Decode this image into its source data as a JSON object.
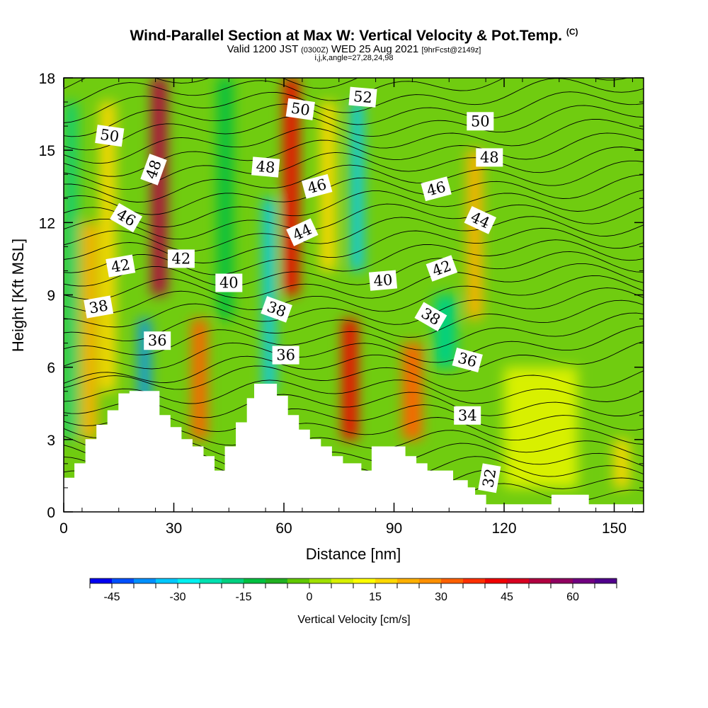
{
  "chart_data": {
    "type": "heatmap",
    "title": "Wind-Parallel Section at Max W: Vertical Velocity & Pot.Temp.",
    "title_mark": "(C)",
    "subtitle_main": "Valid 1200 JST",
    "subtitle_utc": "(0300Z)",
    "subtitle_date": "WED 25 Aug 2021",
    "subtitle_fcst": "[9hrFcst@2149z]",
    "subtitle2": "i,j,k,angle=27,28,24,98",
    "xlabel": "Distance [nm]",
    "ylabel": "Height [Kft MSL]",
    "xlim": [
      0,
      158
    ],
    "ylim": [
      0,
      18
    ],
    "xticks": [
      "0",
      "30",
      "60",
      "90",
      "120",
      "150"
    ],
    "yticks": [
      "0",
      "3",
      "6",
      "9",
      "12",
      "15",
      "18"
    ],
    "colorbar": {
      "title": "Vertical Velocity [cm/s]",
      "min": -50,
      "max": 70,
      "step": 5,
      "labels": [
        "-45",
        "-30",
        "-15",
        "0",
        "15",
        "30",
        "45",
        "60"
      ],
      "colors": [
        "#0000f0",
        "#0050ff",
        "#0090ff",
        "#00c8ff",
        "#00f0f0",
        "#00e0b0",
        "#00d080",
        "#00c040",
        "#20b020",
        "#60c800",
        "#a0e000",
        "#d8f000",
        "#ffff00",
        "#ffd800",
        "#ffb000",
        "#ff9000",
        "#ff6000",
        "#ff3000",
        "#f00000",
        "#d80020",
        "#b00040",
        "#900060",
        "#700080",
        "#50008c"
      ]
    },
    "series": [
      {
        "name": "Vertical Velocity",
        "units": "cm/s",
        "bands": [
          {
            "x": 2,
            "w": 3,
            "ymin": 3,
            "ymax": 17,
            "value": -20
          },
          {
            "x": 7,
            "w": 4,
            "ymin": 3,
            "ymax": 12,
            "value": 20
          },
          {
            "x": 12,
            "w": 4,
            "ymin": 5,
            "ymax": 17,
            "value": 15
          },
          {
            "x": 22,
            "w": 3,
            "ymin": 4,
            "ymax": 8,
            "value": -40
          },
          {
            "x": 26,
            "w": 4,
            "ymin": 9,
            "ymax": 18,
            "value": 50
          },
          {
            "x": 37,
            "w": 4,
            "ymin": 3,
            "ymax": 8,
            "value": 30
          },
          {
            "x": 44,
            "w": 4,
            "ymin": 8,
            "ymax": 18,
            "value": -15
          },
          {
            "x": 56,
            "w": 3,
            "ymin": 5,
            "ymax": 13,
            "value": -35
          },
          {
            "x": 62,
            "w": 4,
            "ymin": 9,
            "ymax": 18,
            "value": 40
          },
          {
            "x": 72,
            "w": 4,
            "ymin": 10,
            "ymax": 17,
            "value": 15
          },
          {
            "x": 78,
            "w": 4,
            "ymin": 3,
            "ymax": 8,
            "value": 40
          },
          {
            "x": 80,
            "w": 3,
            "ymin": 10,
            "ymax": 17,
            "value": -35
          },
          {
            "x": 95,
            "w": 5,
            "ymin": 3,
            "ymax": 7,
            "value": 30
          },
          {
            "x": 104,
            "w": 6,
            "ymin": 6,
            "ymax": 9,
            "value": -20
          },
          {
            "x": 112,
            "w": 4,
            "ymin": 8,
            "ymax": 15,
            "value": 20
          },
          {
            "x": 130,
            "w": 20,
            "ymin": 1,
            "ymax": 6,
            "value": 5
          },
          {
            "x": 152,
            "w": 4,
            "ymin": 1,
            "ymax": 3,
            "value": 15
          }
        ]
      },
      {
        "name": "Pot.Temp.",
        "units": "C",
        "contour_labels": [
          {
            "value": "50",
            "x": 12.5,
            "y": 15.6,
            "angle": 8
          },
          {
            "value": "48",
            "x": 24.5,
            "y": 14.2,
            "angle": -70
          },
          {
            "value": "46",
            "x": 17,
            "y": 12.2,
            "angle": 30
          },
          {
            "value": "42",
            "x": 15.5,
            "y": 10.2,
            "angle": -10
          },
          {
            "value": "38",
            "x": 9.5,
            "y": 8.5,
            "angle": -10
          },
          {
            "value": "42",
            "x": 32,
            "y": 10.5,
            "angle": 0
          },
          {
            "value": "40",
            "x": 45,
            "y": 9.5,
            "angle": 0
          },
          {
            "value": "36",
            "x": 25.5,
            "y": 7.1,
            "angle": 0
          },
          {
            "value": "48",
            "x": 55,
            "y": 14.3,
            "angle": 5
          },
          {
            "value": "50",
            "x": 64.5,
            "y": 16.7,
            "angle": 8
          },
          {
            "value": "52",
            "x": 81.5,
            "y": 17.2,
            "angle": 5
          },
          {
            "value": "46",
            "x": 69,
            "y": 13.5,
            "angle": -15
          },
          {
            "value": "44",
            "x": 65,
            "y": 11.6,
            "angle": -25
          },
          {
            "value": "38",
            "x": 58,
            "y": 8.4,
            "angle": 20
          },
          {
            "value": "36",
            "x": 60.5,
            "y": 6.5,
            "angle": 0
          },
          {
            "value": "40",
            "x": 87,
            "y": 9.6,
            "angle": -5
          },
          {
            "value": "42",
            "x": 103,
            "y": 10.1,
            "angle": -20
          },
          {
            "value": "46",
            "x": 101.5,
            "y": 13.4,
            "angle": -15
          },
          {
            "value": "50",
            "x": 113.5,
            "y": 16.2,
            "angle": 0
          },
          {
            "value": "48",
            "x": 116,
            "y": 14.7,
            "angle": 0
          },
          {
            "value": "44",
            "x": 113.5,
            "y": 12.1,
            "angle": 25
          },
          {
            "value": "38",
            "x": 100,
            "y": 8.1,
            "angle": 30
          },
          {
            "value": "36",
            "x": 110,
            "y": 6.3,
            "angle": 15
          },
          {
            "value": "34",
            "x": 110,
            "y": 4.0,
            "angle": 0
          },
          {
            "value": "32",
            "x": 116,
            "y": 1.4,
            "angle": -80
          }
        ]
      }
    ],
    "terrain": [
      [
        0,
        1.4
      ],
      [
        3,
        1.4
      ],
      [
        3,
        2
      ],
      [
        6,
        2
      ],
      [
        6,
        3
      ],
      [
        9,
        3
      ],
      [
        9,
        3.6
      ],
      [
        12,
        3.6
      ],
      [
        12,
        4.2
      ],
      [
        15,
        4.2
      ],
      [
        15,
        4.9
      ],
      [
        18,
        4.9
      ],
      [
        18,
        5
      ],
      [
        26,
        5
      ],
      [
        26,
        4
      ],
      [
        29,
        4
      ],
      [
        29,
        3.5
      ],
      [
        32,
        3.5
      ],
      [
        32,
        3
      ],
      [
        35,
        3
      ],
      [
        35,
        2.7
      ],
      [
        38,
        2.7
      ],
      [
        38,
        2.3
      ],
      [
        41,
        2.3
      ],
      [
        41,
        1.7
      ],
      [
        44,
        1.7
      ],
      [
        44,
        2.7
      ],
      [
        47,
        2.7
      ],
      [
        47,
        3.7
      ],
      [
        50,
        3.7
      ],
      [
        50,
        4.7
      ],
      [
        52,
        4.7
      ],
      [
        52,
        5.3
      ],
      [
        58,
        5.3
      ],
      [
        58,
        4.8
      ],
      [
        61,
        4.8
      ],
      [
        61,
        4
      ],
      [
        64,
        4
      ],
      [
        64,
        3.4
      ],
      [
        67,
        3.4
      ],
      [
        67,
        3
      ],
      [
        70,
        3
      ],
      [
        70,
        2.7
      ],
      [
        73,
        2.7
      ],
      [
        73,
        2.3
      ],
      [
        76,
        2.3
      ],
      [
        76,
        2
      ],
      [
        81,
        2
      ],
      [
        81,
        1.7
      ],
      [
        84,
        1.7
      ],
      [
        84,
        2.7
      ],
      [
        93,
        2.7
      ],
      [
        93,
        2.3
      ],
      [
        96,
        2.3
      ],
      [
        96,
        2
      ],
      [
        99,
        2
      ],
      [
        99,
        1.7
      ],
      [
        106,
        1.7
      ],
      [
        106,
        1.3
      ],
      [
        110,
        1.3
      ],
      [
        110,
        1
      ],
      [
        112,
        1
      ],
      [
        112,
        0.7
      ],
      [
        115,
        0.7
      ],
      [
        115,
        0.3
      ],
      [
        133,
        0.3
      ],
      [
        133,
        0.7
      ],
      [
        143,
        0.7
      ],
      [
        143,
        0.3
      ],
      [
        158,
        0.3
      ]
    ]
  }
}
